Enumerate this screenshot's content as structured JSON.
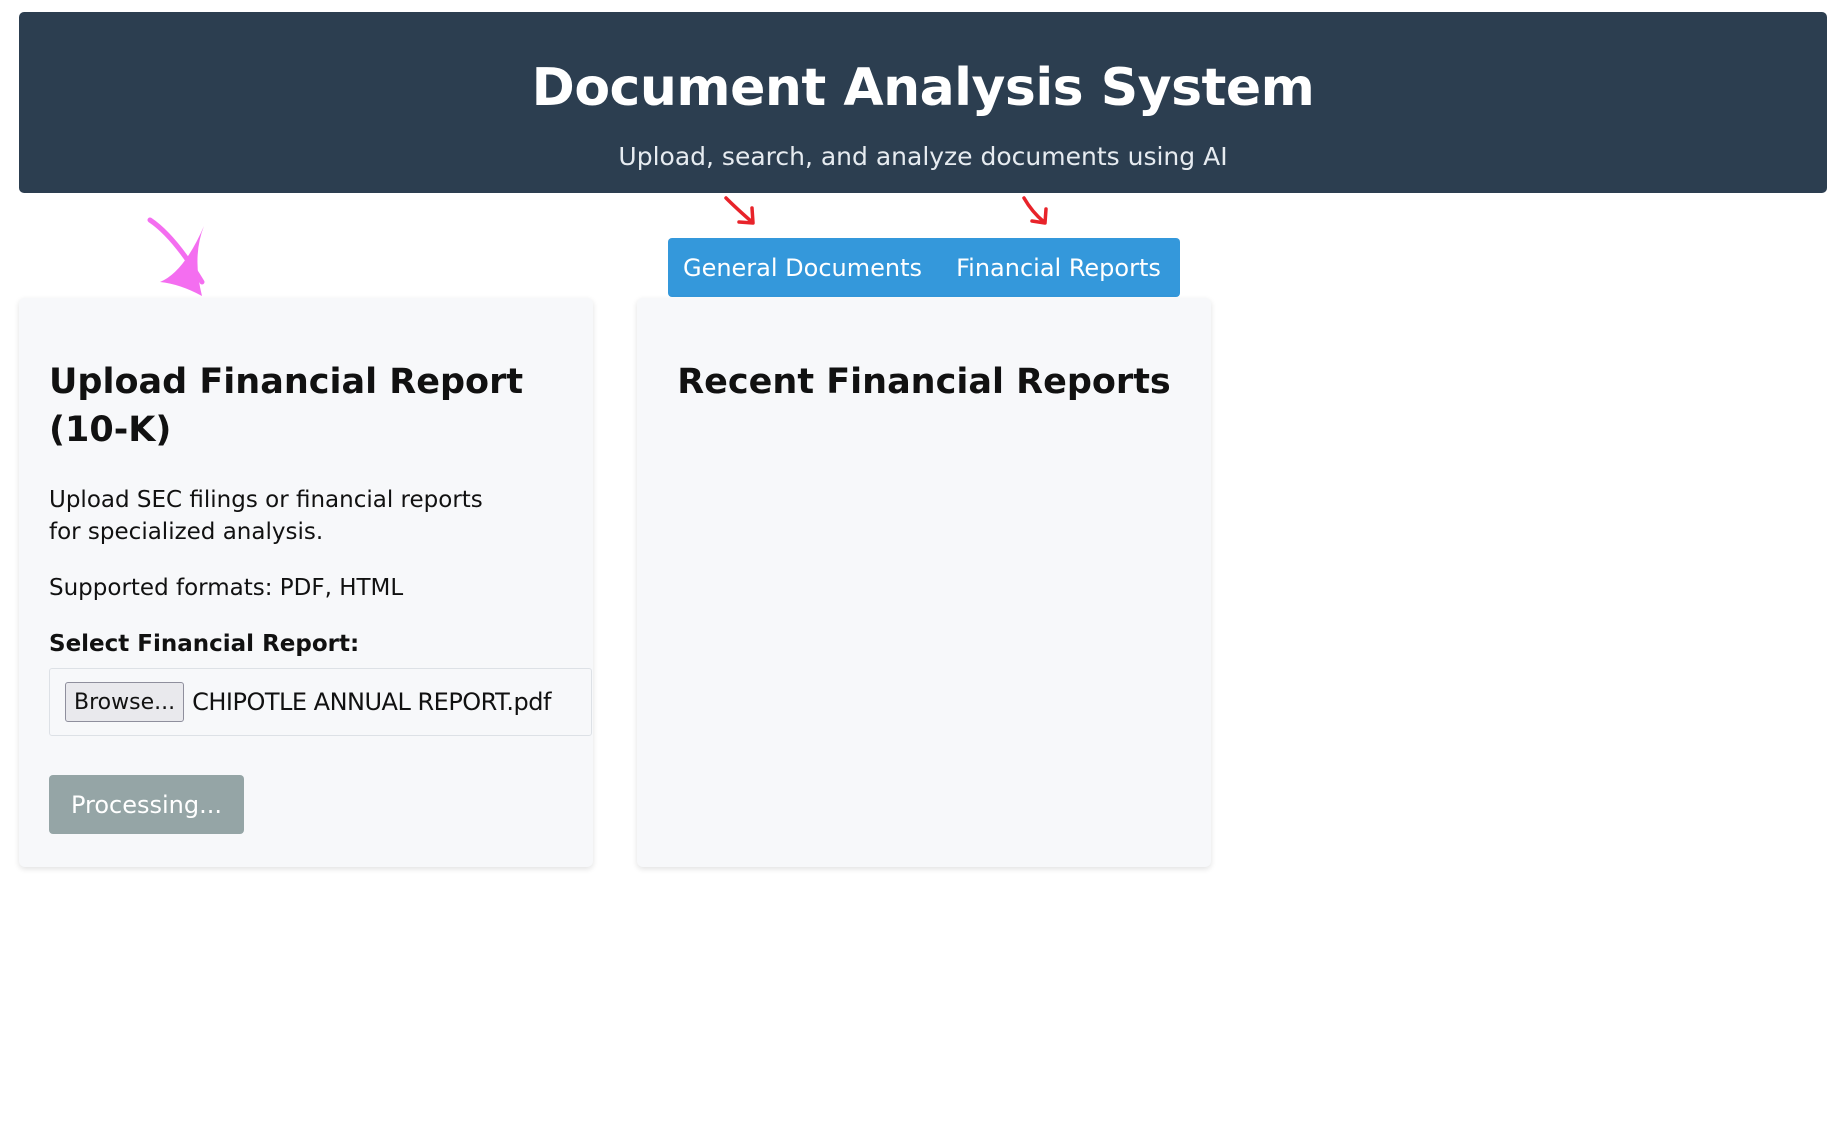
{
  "header": {
    "title": "Document Analysis System",
    "subtitle": "Upload, search, and analyze documents using AI"
  },
  "tabs": [
    {
      "label": "General Documents"
    },
    {
      "label": "Financial Reports"
    }
  ],
  "upload_card": {
    "title": "Upload Financial Report (10-K)",
    "description": "Upload SEC filings or financial reports for specialized analysis.",
    "formats": "Supported formats: PDF, HTML",
    "field_label": "Select Financial Report:",
    "browse_label": "Browse...",
    "file_name": "CHIPOTLE ANNUAL REPORT.pdf",
    "submit_label": "Processing..."
  },
  "recent_card": {
    "title": "Recent Financial Reports"
  },
  "colors": {
    "header_bg": "#2c3e50",
    "tab_bg": "#3498db",
    "button_disabled": "#95a5a6",
    "card_bg": "#f7f8fa",
    "annotation_red": "#e8232a",
    "annotation_pink": "#f46ef0"
  }
}
